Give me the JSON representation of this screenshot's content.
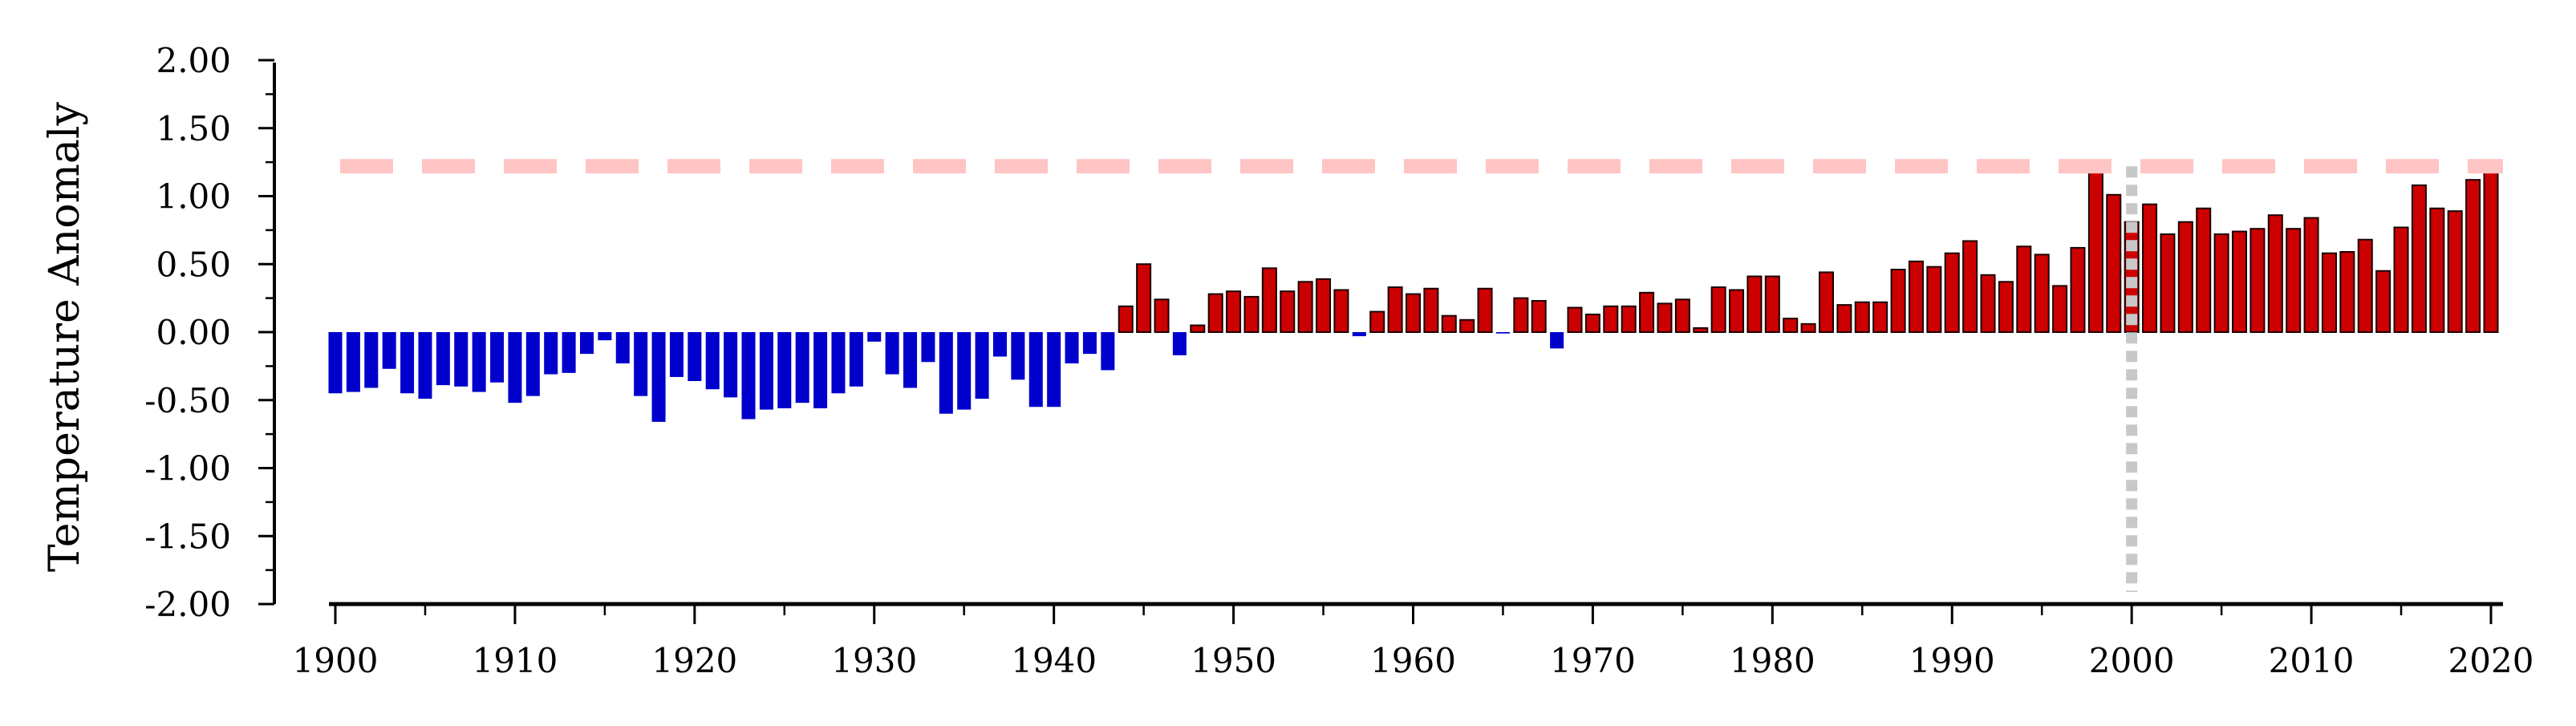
{
  "chart_data": {
    "type": "bar",
    "title": "",
    "xlabel": "",
    "ylabel": "Temperature Anomaly",
    "xlim": [
      1900,
      2020
    ],
    "ylim": [
      -2.0,
      2.0
    ],
    "x_ticks": [
      "1900",
      "1910",
      "1920",
      "1930",
      "1940",
      "1950",
      "1960",
      "1970",
      "1980",
      "1990",
      "2000",
      "2010",
      "2020"
    ],
    "y_ticks": [
      "2.00",
      "1.50",
      "1.00",
      "0.50",
      "0.00",
      "-0.50",
      "-1.00",
      "-1.50",
      "-2.00"
    ],
    "grid": false,
    "legend": "none",
    "colors": {
      "positive": "#cc0000",
      "positive_edge": "#1a0000",
      "negative": "#0000cc",
      "reference_line": "#ffc4c4",
      "vertical_line": "#c8c8c8"
    },
    "reference_hline": 1.22,
    "reference_vline": 2000,
    "x": [
      1900,
      1901,
      1902,
      1903,
      1904,
      1905,
      1906,
      1907,
      1908,
      1909,
      1910,
      1911,
      1912,
      1913,
      1914,
      1915,
      1916,
      1917,
      1918,
      1919,
      1920,
      1921,
      1922,
      1923,
      1924,
      1925,
      1926,
      1927,
      1928,
      1929,
      1930,
      1931,
      1932,
      1933,
      1934,
      1935,
      1936,
      1937,
      1938,
      1939,
      1940,
      1941,
      1942,
      1943,
      1944,
      1945,
      1946,
      1947,
      1948,
      1949,
      1950,
      1951,
      1952,
      1953,
      1954,
      1955,
      1956,
      1957,
      1958,
      1959,
      1960,
      1961,
      1962,
      1963,
      1964,
      1965,
      1966,
      1967,
      1968,
      1969,
      1970,
      1971,
      1972,
      1973,
      1974,
      1975,
      1976,
      1977,
      1978,
      1979,
      1980,
      1981,
      1982,
      1983,
      1984,
      1985,
      1986,
      1987,
      1988,
      1989,
      1990,
      1991,
      1992,
      1993,
      1994,
      1995,
      1996,
      1997,
      1998,
      1999,
      2000,
      2001,
      2002,
      2003,
      2004,
      2005,
      2006,
      2007,
      2008,
      2009,
      2010,
      2011,
      2012,
      2013,
      2014,
      2015,
      2016,
      2017,
      2018,
      2019,
      2020
    ],
    "values": [
      -0.45,
      -0.44,
      -0.41,
      -0.27,
      -0.45,
      -0.49,
      -0.39,
      -0.4,
      -0.44,
      -0.37,
      -0.52,
      -0.47,
      -0.31,
      -0.3,
      -0.16,
      -0.06,
      -0.23,
      -0.47,
      -0.66,
      -0.33,
      -0.36,
      -0.42,
      -0.48,
      -0.64,
      -0.57,
      -0.56,
      -0.52,
      -0.56,
      -0.45,
      -0.4,
      -0.07,
      -0.31,
      -0.41,
      -0.22,
      -0.6,
      -0.57,
      -0.49,
      -0.18,
      -0.35,
      -0.55,
      -0.55,
      -0.23,
      -0.16,
      -0.28,
      0.19,
      0.5,
      0.24,
      -0.17,
      0.05,
      0.28,
      0.3,
      0.26,
      0.47,
      0.3,
      0.37,
      0.39,
      0.31,
      -0.03,
      0.15,
      0.33,
      0.28,
      0.32,
      0.12,
      0.09,
      0.32,
      -0.01,
      0.25,
      0.23,
      -0.12,
      0.18,
      0.13,
      0.19,
      0.19,
      0.29,
      0.21,
      0.24,
      0.03,
      0.33,
      0.31,
      0.41,
      0.41,
      0.1,
      0.06,
      0.44,
      0.2,
      0.22,
      0.22,
      0.46,
      0.52,
      0.48,
      0.58,
      0.67,
      0.42,
      0.37,
      0.63,
      0.57,
      0.34,
      0.62,
      1.22,
      1.01,
      0.81,
      0.94,
      0.72,
      0.81,
      0.91,
      0.72,
      0.74,
      0.76,
      0.86,
      0.76,
      0.84,
      0.58,
      0.59,
      0.68,
      0.45,
      0.77,
      1.08,
      0.91,
      0.89,
      1.12,
      1.26
    ]
  }
}
